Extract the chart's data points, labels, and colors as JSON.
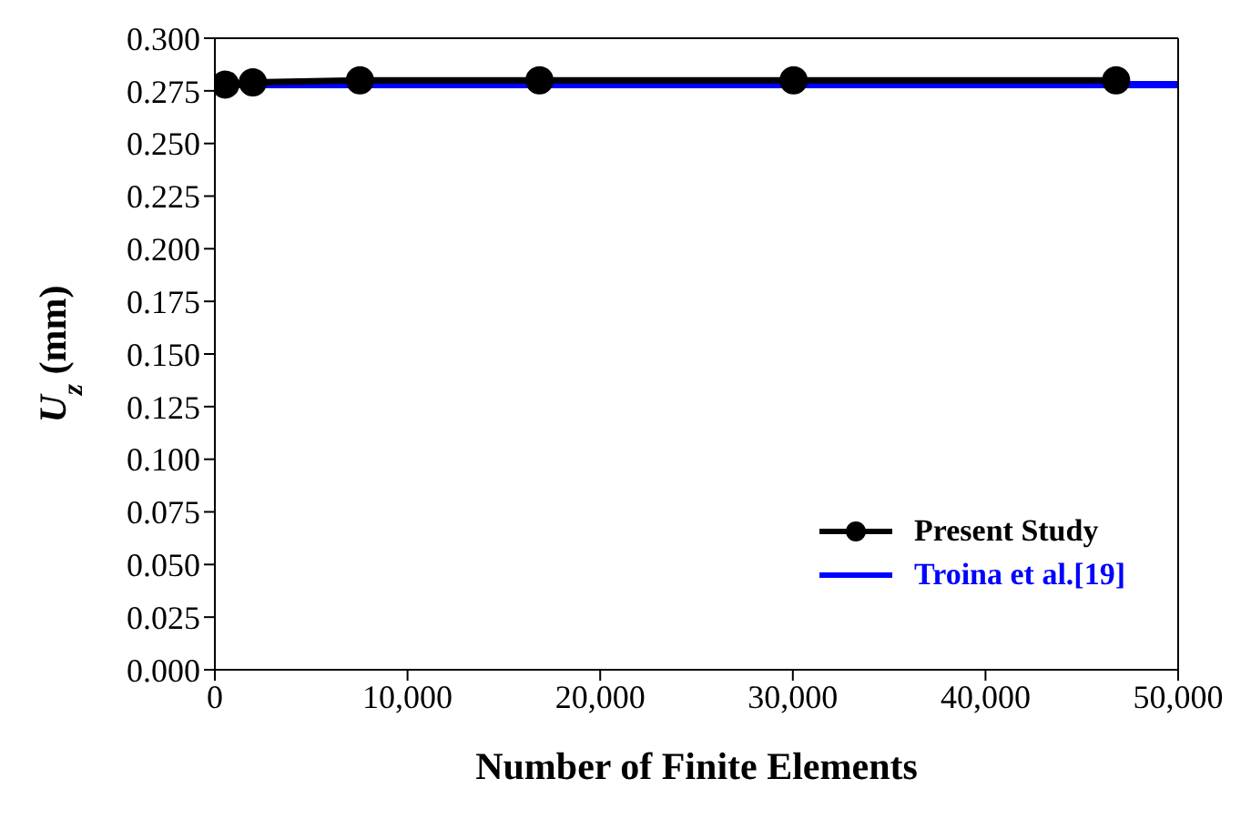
{
  "chart_data": {
    "type": "line",
    "xlabel": "Number of Finite Elements",
    "ylabel": "U$_{z}$ (mm)",
    "xlim": [
      0,
      50000
    ],
    "xticks": [
      {
        "value": 0,
        "label": "0"
      },
      {
        "value": 10000,
        "label": "10,000"
      },
      {
        "value": 20000,
        "label": "20,000"
      },
      {
        "value": 30000,
        "label": "30,000"
      },
      {
        "value": 40000,
        "label": "40,000"
      },
      {
        "value": 50000,
        "label": "50,000"
      }
    ],
    "ylim": [
      0,
      0.3
    ],
    "yticks": [
      {
        "value": 0,
        "label": "0.000"
      },
      {
        "value": 0.025,
        "label": "0.025"
      },
      {
        "value": 0.05,
        "label": "0.050"
      },
      {
        "value": 0.075,
        "label": "0.075"
      },
      {
        "value": 0.1,
        "label": "0.100"
      },
      {
        "value": 0.125,
        "label": "0.125"
      },
      {
        "value": 0.15,
        "label": "0.150"
      },
      {
        "value": 0.175,
        "label": "0.175"
      },
      {
        "value": 0.2,
        "label": "0.200"
      },
      {
        "value": 0.225,
        "label": "0.225"
      },
      {
        "value": 0.25,
        "label": "0.250"
      },
      {
        "value": 0.275,
        "label": "0.275"
      },
      {
        "value": 0.3,
        "label": "0.300"
      }
    ],
    "grid": false,
    "legend": "bottom right",
    "series": [
      {
        "name": "Troina et al.[19]",
        "color": "#0000ff",
        "x": [
          0,
          50000
        ],
        "values": [
          0.278,
          0.278
        ],
        "marker": "none"
      },
      {
        "name": "Present Study",
        "color": "#000000",
        "x": [
          540,
          1970,
          7530,
          16850,
          30040,
          46780
        ],
        "values": [
          0.278,
          0.279,
          0.28,
          0.28,
          0.28,
          0.28
        ],
        "marker": "circle"
      }
    ]
  }
}
